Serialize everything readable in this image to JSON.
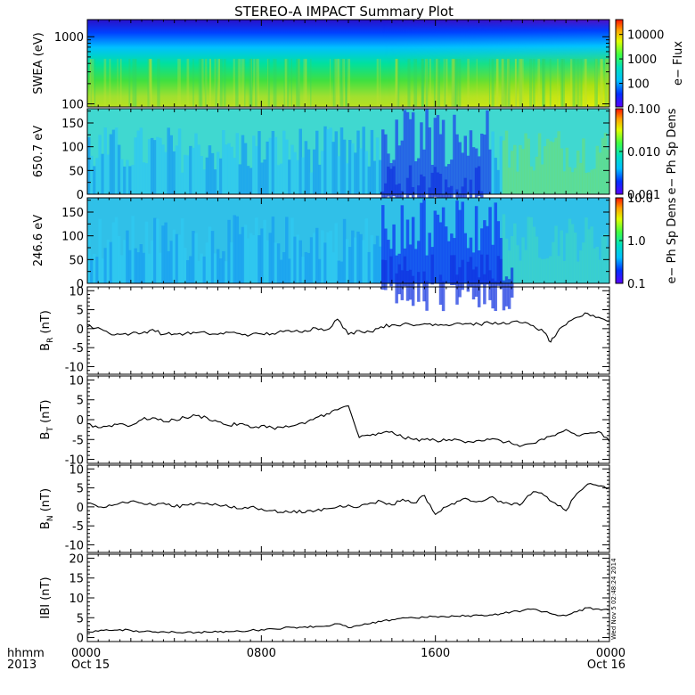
{
  "title": "STEREO-A IMPACT Summary Plot",
  "timestamp_note": "Wed Nov  5 02:48:24 2014",
  "x_axis": {
    "corner_labels": [
      "hhmm",
      "2013"
    ],
    "ticks": [
      {
        "label": "0000",
        "date": "Oct 15",
        "hours": 0
      },
      {
        "label": "0800",
        "date": "",
        "hours": 8
      },
      {
        "label": "1600",
        "date": "",
        "hours": 16
      },
      {
        "label": "0000",
        "date": "Oct 16",
        "hours": 24
      }
    ],
    "range_hours": [
      0,
      24
    ]
  },
  "chart_data": [
    {
      "type": "heatmap",
      "ylabel": "SWEA (eV)",
      "y_scale": "log",
      "y_ticks": [
        {
          "value": 100,
          "label": "100"
        },
        {
          "value": 1000,
          "label": "1000"
        }
      ],
      "ylim": [
        90,
        1800
      ],
      "colorbar": {
        "label": "e− Flux",
        "scale": "log",
        "ticks": [
          "100",
          "1000",
          "10000"
        ],
        "range": [
          10,
          30000
        ]
      },
      "description_values": {
        "low_energy_flux_start": 3000,
        "low_energy_flux_end": 20000,
        "high_energy_flux": 30
      }
    },
    {
      "type": "heatmap",
      "ylabel": "650.7 eV",
      "ylim": [
        0,
        180
      ],
      "y_ticks": [
        "0",
        "50",
        "100",
        "150"
      ],
      "colorbar": {
        "label": "e− Ph Sp Dens",
        "scale": "log",
        "ticks": [
          "0.001",
          "0.010",
          "0.100"
        ],
        "range": [
          0.001,
          0.1
        ]
      }
    },
    {
      "type": "heatmap",
      "ylabel": "246.6 eV",
      "ylim": [
        0,
        180
      ],
      "y_ticks": [
        "0",
        "50",
        "100",
        "150"
      ],
      "colorbar": {
        "label": "e− Ph Sp Dens",
        "scale": "log",
        "ticks": [
          "0.1",
          "1.0",
          "10.0"
        ],
        "range": [
          0.1,
          10
        ]
      }
    },
    {
      "type": "line",
      "ylabel_main": "B",
      "ylabel_sub": "R",
      "ylabel_unit": " (nT)",
      "ylim": [
        -12,
        11
      ],
      "y_ticks": [
        "10",
        "5",
        "0",
        "-5",
        "-10"
      ],
      "x": [
        0,
        0.5,
        1,
        1.5,
        2,
        2.5,
        3,
        3.5,
        4,
        4.5,
        5,
        5.5,
        6,
        6.5,
        7,
        7.5,
        8,
        8.5,
        9,
        9.5,
        10,
        10.5,
        11,
        11.5,
        12,
        12.5,
        13,
        13.5,
        14,
        14.5,
        15,
        15.5,
        16,
        16.5,
        17,
        17.5,
        18,
        18.5,
        19,
        19.5,
        20,
        20.5,
        21,
        21.3,
        21.6,
        22,
        22.5,
        23,
        23.5,
        24
      ],
      "y": [
        0.5,
        0.3,
        -1.2,
        -1.5,
        -1.3,
        -1.2,
        -0.2,
        -1.5,
        -1.4,
        -1.3,
        -1.1,
        -1.2,
        -1.5,
        -1.0,
        -1.3,
        -1.6,
        -1.4,
        -1.3,
        -0.8,
        -0.7,
        -0.5,
        0.2,
        -0.3,
        2.5,
        -1.5,
        -0.5,
        -0.8,
        0.5,
        1.0,
        1.2,
        0.8,
        1.3,
        1.2,
        1.0,
        1.5,
        1.3,
        1.2,
        1.5,
        1.3,
        1.8,
        1.5,
        0.8,
        -1.0,
        -3.5,
        -1.0,
        1.0,
        3.0,
        4.0,
        3.0,
        2.0
      ]
    },
    {
      "type": "line",
      "ylabel_main": "B",
      "ylabel_sub": "T",
      "ylabel_unit": " (nT)",
      "ylim": [
        -11,
        11
      ],
      "y_ticks": [
        "10",
        "5",
        "0",
        "-5",
        "-10"
      ],
      "x": [
        0,
        0.5,
        1,
        1.5,
        2,
        2.5,
        3,
        3.5,
        4,
        4.5,
        5,
        5.5,
        6,
        6.5,
        7,
        7.5,
        8,
        8.5,
        9,
        9.5,
        10,
        10.5,
        11,
        11.5,
        12,
        12.5,
        13,
        13.5,
        14,
        14.5,
        15,
        15.5,
        16,
        16.5,
        17,
        17.5,
        18,
        18.5,
        19,
        19.5,
        20,
        20.5,
        21,
        21.5,
        22,
        22.5,
        23,
        23.5,
        24
      ],
      "y": [
        -1.0,
        -2.0,
        -1.5,
        -1.0,
        -1.5,
        0.0,
        0.5,
        -0.5,
        0.0,
        0.5,
        1.0,
        0.5,
        -0.5,
        -1.5,
        -1.0,
        -2.0,
        -1.5,
        -2.0,
        -2.0,
        -1.5,
        -1.0,
        0.5,
        1.5,
        2.5,
        3.5,
        -4.5,
        -4.0,
        -3.5,
        -3.0,
        -4.5,
        -5.0,
        -5.0,
        -5.2,
        -5.3,
        -5.0,
        -5.5,
        -5.2,
        -5.0,
        -5.3,
        -6.0,
        -6.5,
        -6.0,
        -5.0,
        -4.0,
        -2.5,
        -4.0,
        -3.5,
        -3.0,
        -5.5
      ]
    },
    {
      "type": "line",
      "ylabel_main": "B",
      "ylabel_sub": "N",
      "ylabel_unit": " (nT)",
      "ylim": [
        -12,
        11
      ],
      "y_ticks": [
        "10",
        "5",
        "0",
        "-5",
        "-10"
      ],
      "x": [
        0,
        0.5,
        1,
        1.5,
        2,
        2.5,
        3,
        3.5,
        4,
        4.5,
        5,
        5.5,
        6,
        6.5,
        7,
        7.5,
        8,
        8.5,
        9,
        9.5,
        10,
        10.5,
        11,
        11.5,
        12,
        12.5,
        13,
        13.5,
        14,
        14.5,
        15,
        15.5,
        16,
        16.5,
        17,
        17.5,
        18,
        18.5,
        19,
        19.5,
        20,
        20.5,
        21,
        21.5,
        22,
        22.5,
        23,
        23.5,
        24
      ],
      "y": [
        1.0,
        0.0,
        0.5,
        1.0,
        1.5,
        1.0,
        0.5,
        1.0,
        0.0,
        0.5,
        1.0,
        1.0,
        0.5,
        0.0,
        -0.5,
        0.0,
        -0.5,
        -1.0,
        -1.5,
        -1.0,
        -1.5,
        -1.0,
        -0.5,
        0.0,
        0.5,
        0.0,
        1.0,
        1.5,
        0.5,
        2.0,
        1.0,
        3.0,
        -2.0,
        0.0,
        1.5,
        2.0,
        1.5,
        2.5,
        1.5,
        0.5,
        1.0,
        4.0,
        3.0,
        1.0,
        -1.0,
        3.5,
        6.0,
        5.5,
        5.0
      ]
    },
    {
      "type": "line",
      "ylabel": "IBI (nT)",
      "ylim": [
        -1,
        21
      ],
      "y_ticks": [
        "20",
        "15",
        "10",
        "5",
        "0"
      ],
      "x": [
        0,
        0.5,
        1,
        1.5,
        2,
        2.5,
        3,
        3.5,
        4,
        4.5,
        5,
        5.5,
        6,
        6.5,
        7,
        7.5,
        8,
        8.5,
        9,
        9.5,
        10,
        10.5,
        11,
        11.5,
        12,
        12.5,
        13,
        13.5,
        14,
        14.5,
        15,
        15.5,
        16,
        16.5,
        17,
        17.5,
        18,
        18.5,
        19,
        19.5,
        20,
        20.5,
        21,
        21.5,
        22,
        22.5,
        23,
        23.5,
        24
      ],
      "y": [
        1.5,
        1.6,
        1.8,
        2.0,
        1.8,
        1.5,
        1.4,
        1.5,
        1.4,
        1.3,
        1.3,
        1.4,
        1.4,
        1.5,
        1.6,
        1.8,
        2.0,
        2.2,
        2.4,
        2.6,
        2.7,
        2.8,
        2.9,
        3.5,
        2.5,
        3.0,
        3.5,
        4.0,
        4.5,
        5.0,
        5.0,
        5.1,
        5.3,
        5.2,
        5.4,
        5.5,
        5.6,
        5.7,
        6.0,
        6.5,
        6.8,
        7.2,
        6.5,
        5.8,
        5.5,
        6.5,
        7.5,
        7.2,
        7.0
      ]
    }
  ],
  "colors": {
    "axes": "#000000",
    "line": "#000000"
  }
}
